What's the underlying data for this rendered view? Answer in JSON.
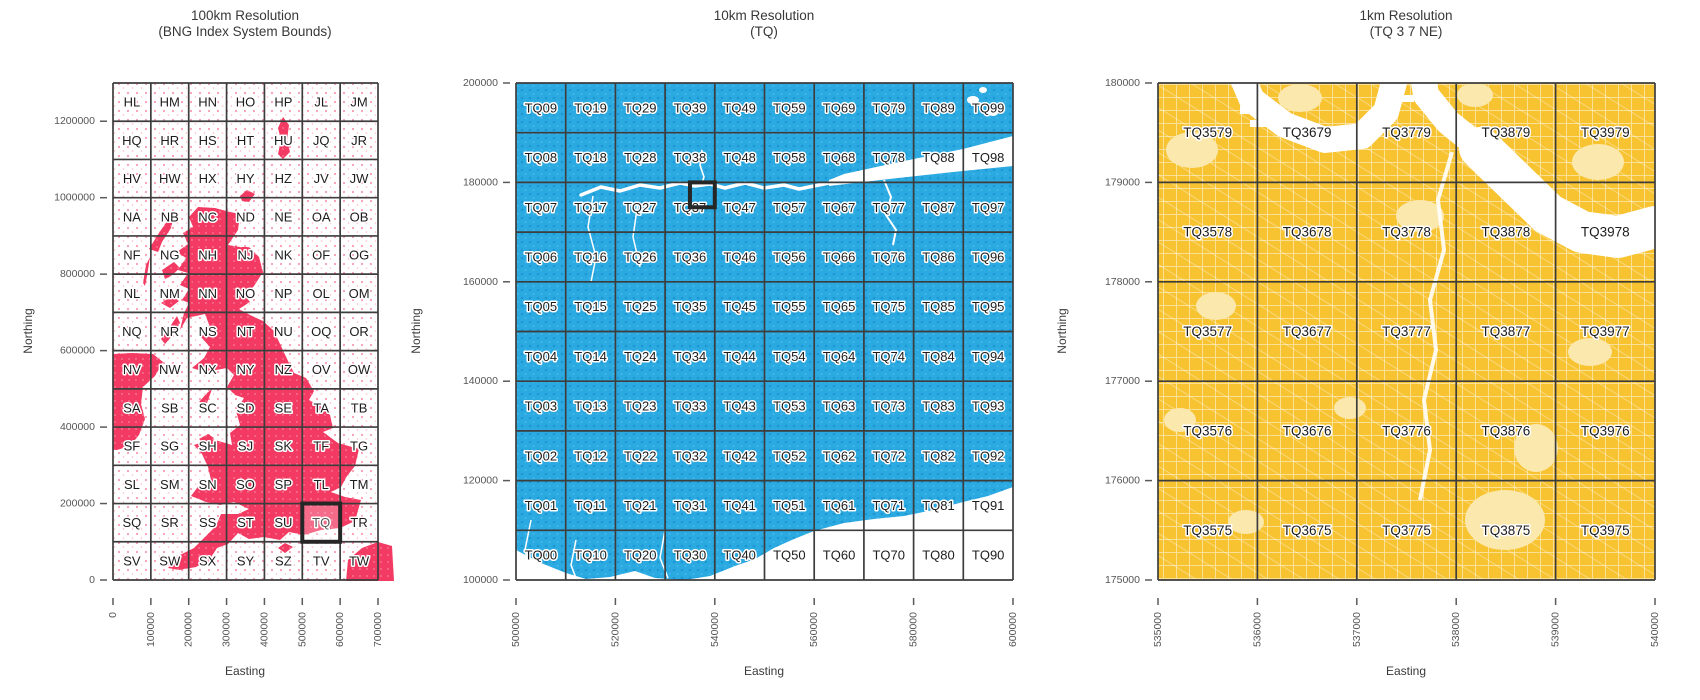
{
  "figure": {
    "background": "#ffffff"
  },
  "chart_data": [
    {
      "type": "heatmap",
      "panel": "100km",
      "title_line1": "100km Resolution",
      "title_line2": "(BNG Index System Bounds)",
      "xlabel": "Easting",
      "ylabel": "Northing",
      "xlim": [
        0,
        700000
      ],
      "ylim": [
        0,
        1300000
      ],
      "xticks": [
        0,
        100000,
        200000,
        300000,
        400000,
        500000,
        600000,
        700000
      ],
      "yticks": [
        0,
        200000,
        400000,
        600000,
        800000,
        1000000,
        1200000
      ],
      "cell_size_m": 100000,
      "grid_on": true,
      "map_color": "#F23A63",
      "grid_labels": [
        [
          "HL",
          "HM",
          "HN",
          "HO",
          "HP",
          "JL",
          "JM"
        ],
        [
          "HQ",
          "HR",
          "HS",
          "HT",
          "HU",
          "JQ",
          "JR"
        ],
        [
          "HV",
          "HW",
          "HX",
          "HY",
          "HZ",
          "JV",
          "JW"
        ],
        [
          "NA",
          "NB",
          "NC",
          "ND",
          "NE",
          "OA",
          "OB"
        ],
        [
          "NF",
          "NG",
          "NH",
          "NJ",
          "NK",
          "OF",
          "OG"
        ],
        [
          "NL",
          "NM",
          "NN",
          "NO",
          "NP",
          "OL",
          "OM"
        ],
        [
          "NQ",
          "NR",
          "NS",
          "NT",
          "NU",
          "OQ",
          "OR"
        ],
        [
          "NV",
          "NW",
          "NX",
          "NY",
          "NZ",
          "OV",
          "OW"
        ],
        [
          "SA",
          "SB",
          "SC",
          "SD",
          "SE",
          "TA",
          "TB"
        ],
        [
          "SF",
          "SG",
          "SH",
          "SJ",
          "SK",
          "TF",
          "TG"
        ],
        [
          "SL",
          "SM",
          "SN",
          "SO",
          "SP",
          "TL",
          "TM"
        ],
        [
          "SQ",
          "SR",
          "SS",
          "ST",
          "SU",
          "TQ",
          "TR"
        ],
        [
          "SV",
          "SW",
          "SX",
          "SY",
          "SZ",
          "TV",
          "TW"
        ]
      ],
      "highlight_cell": {
        "label": "TQ",
        "easting": [
          500000,
          600000
        ],
        "northing": [
          100000,
          200000
        ],
        "box_color": "#262626"
      }
    },
    {
      "type": "heatmap",
      "panel": "10km",
      "title_line1": "10km Resolution",
      "title_line2": "(TQ)",
      "xlabel": "Easting",
      "ylabel": "Northing",
      "xlim": [
        500000,
        600000
      ],
      "ylim": [
        100000,
        200000
      ],
      "xticks": [
        500000,
        520000,
        540000,
        560000,
        580000,
        600000
      ],
      "yticks": [
        100000,
        120000,
        140000,
        160000,
        180000,
        200000
      ],
      "cell_size_m": 10000,
      "grid_on": true,
      "map_color": "#2BA9E1",
      "grid_labels": [
        [
          "TQ09",
          "TQ19",
          "TQ29",
          "TQ39",
          "TQ49",
          "TQ59",
          "TQ69",
          "TQ79",
          "TQ89",
          "TQ99"
        ],
        [
          "TQ08",
          "TQ18",
          "TQ28",
          "TQ38",
          "TQ48",
          "TQ58",
          "TQ68",
          "TQ78",
          "TQ88",
          "TQ98"
        ],
        [
          "TQ07",
          "TQ17",
          "TQ27",
          "TQ37",
          "TQ47",
          "TQ57",
          "TQ67",
          "TQ77",
          "TQ87",
          "TQ97"
        ],
        [
          "TQ06",
          "TQ16",
          "TQ26",
          "TQ36",
          "TQ46",
          "TQ56",
          "TQ66",
          "TQ76",
          "TQ86",
          "TQ96"
        ],
        [
          "TQ05",
          "TQ15",
          "TQ25",
          "TQ35",
          "TQ45",
          "TQ55",
          "TQ65",
          "TQ75",
          "TQ85",
          "TQ95"
        ],
        [
          "TQ04",
          "TQ14",
          "TQ24",
          "TQ34",
          "TQ44",
          "TQ54",
          "TQ64",
          "TQ74",
          "TQ84",
          "TQ94"
        ],
        [
          "TQ03",
          "TQ13",
          "TQ23",
          "TQ33",
          "TQ43",
          "TQ53",
          "TQ63",
          "TQ73",
          "TQ83",
          "TQ93"
        ],
        [
          "TQ02",
          "TQ12",
          "TQ22",
          "TQ32",
          "TQ42",
          "TQ52",
          "TQ62",
          "TQ72",
          "TQ82",
          "TQ92"
        ],
        [
          "TQ01",
          "TQ11",
          "TQ21",
          "TQ31",
          "TQ41",
          "TQ51",
          "TQ61",
          "TQ71",
          "TQ81",
          "TQ91"
        ],
        [
          "TQ00",
          "TQ10",
          "TQ20",
          "TQ30",
          "TQ40",
          "TQ50",
          "TQ60",
          "TQ70",
          "TQ80",
          "TQ90"
        ]
      ],
      "highlight_cell": {
        "label": "TQ 3 7 NE",
        "easting": [
          535000,
          540000
        ],
        "northing": [
          175000,
          180000
        ],
        "box_color": "#262626"
      }
    },
    {
      "type": "heatmap",
      "panel": "1km",
      "title_line1": "1km Resolution",
      "title_line2": "(TQ 3 7 NE)",
      "xlabel": "Easting",
      "ylabel": "Northing",
      "xlim": [
        535000,
        540000
      ],
      "ylim": [
        175000,
        180000
      ],
      "xticks": [
        535000,
        536000,
        537000,
        538000,
        539000,
        540000
      ],
      "yticks": [
        175000,
        176000,
        177000,
        178000,
        179000,
        180000
      ],
      "cell_size_m": 1000,
      "grid_on": true,
      "map_color": "#F7C331",
      "grid_labels": [
        [
          "TQ3579",
          "TQ3679",
          "TQ3779",
          "TQ3879",
          "TQ3979"
        ],
        [
          "TQ3578",
          "TQ3678",
          "TQ3778",
          "TQ3878",
          "TQ3978"
        ],
        [
          "TQ3577",
          "TQ3677",
          "TQ3777",
          "TQ3877",
          "TQ3977"
        ],
        [
          "TQ3576",
          "TQ3676",
          "TQ3776",
          "TQ3876",
          "TQ3976"
        ],
        [
          "TQ3575",
          "TQ3675",
          "TQ3775",
          "TQ3875",
          "TQ3975"
        ]
      ],
      "highlight_cell": null
    }
  ]
}
